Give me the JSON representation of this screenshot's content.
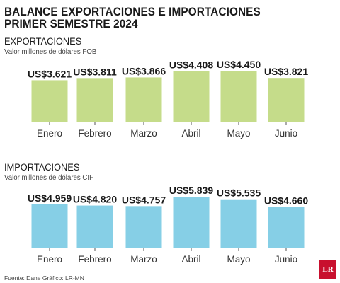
{
  "title_line1": "BALANCE EXPORTACIONES E IMPORTACIONES",
  "title_line2": "PRIMER SEMESTRE 2024",
  "source": "Fuente: Dane  Gráfico: LR-MN",
  "logo_text": "LR",
  "colors": {
    "exports": "#c5dc8a",
    "imports": "#86cfe6",
    "axis": "#555555",
    "logo": "#c8102e"
  },
  "chart_data": [
    {
      "type": "bar",
      "title": "EXPORTACIONES",
      "subtitle": "Valor millones de dólares FOB",
      "categories": [
        "Enero",
        "Febrero",
        "Marzo",
        "Abril",
        "Mayo",
        "Junio"
      ],
      "values": [
        3621,
        3811,
        3866,
        4408,
        4450,
        3821
      ],
      "value_labels": [
        "US$3.621",
        "US$3.811",
        "US$3.866",
        "US$4.408",
        "US$4.450",
        "US$3.821"
      ],
      "ylim": [
        0,
        4450
      ],
      "grid": false
    },
    {
      "type": "bar",
      "title": "IMPORTACIONES",
      "subtitle": "Valor millones de dólares CIF",
      "categories": [
        "Enero",
        "Febrero",
        "Marzo",
        "Abril",
        "Mayo",
        "Junio"
      ],
      "values": [
        4959,
        4820,
        4757,
        5839,
        5535,
        4660
      ],
      "value_labels": [
        "US$4.959",
        "US$4.820",
        "US$4.757",
        "US$5.839",
        "US$5.535",
        "US$4.660"
      ],
      "ylim": [
        0,
        5839
      ],
      "grid": false
    }
  ]
}
